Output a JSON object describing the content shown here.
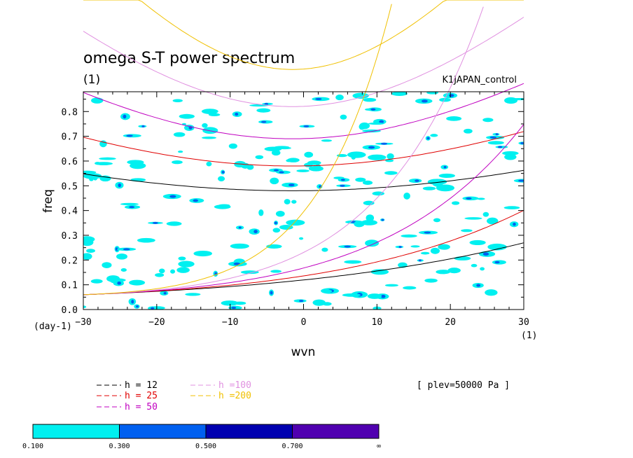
{
  "chart_data": {
    "type": "heatmap",
    "title": "omega S-T power spectrum",
    "subtitle": "(1)",
    "case_name": "K1JAPAN_control",
    "xlabel": "wvn",
    "ylabel": "freq",
    "y_unit_label": "(day-1)",
    "x_unit_label": "(1)",
    "xlim": [
      -30,
      30
    ],
    "ylim": [
      0,
      0.88
    ],
    "xticks": [
      -30,
      -20,
      -10,
      0,
      10,
      20,
      30
    ],
    "yticks": [
      0,
      0.1,
      0.2,
      0.3,
      0.4,
      0.5,
      0.6,
      0.7,
      0.8
    ],
    "ytick_labels": [
      "0.0",
      "0.1",
      "0.2",
      "0.3",
      "0.4",
      "0.5",
      "0.6",
      "0.7",
      "0.8"
    ],
    "dispersion_curves": [
      {
        "name": "h = 12",
        "color": "#000000"
      },
      {
        "name": "h = 25",
        "color": "#e00000"
      },
      {
        "name": "h = 50",
        "color": "#c000c0"
      },
      {
        "name": "h =100",
        "color": "#e090e0"
      },
      {
        "name": "h =200",
        "color": "#f0c000"
      }
    ],
    "annotation": "[ plev=50000 Pa ]",
    "colorbar": {
      "levels": [
        "0.100",
        "0.300",
        "0.500",
        "0.700",
        "∞"
      ],
      "colors": [
        "#00f0f0",
        "#0060f0",
        "#0000b0",
        "#5000b0"
      ]
    },
    "field_description": "sparse patches; most cells 0.1-0.3 (cyan), some 0.3-0.5 (blue)"
  }
}
